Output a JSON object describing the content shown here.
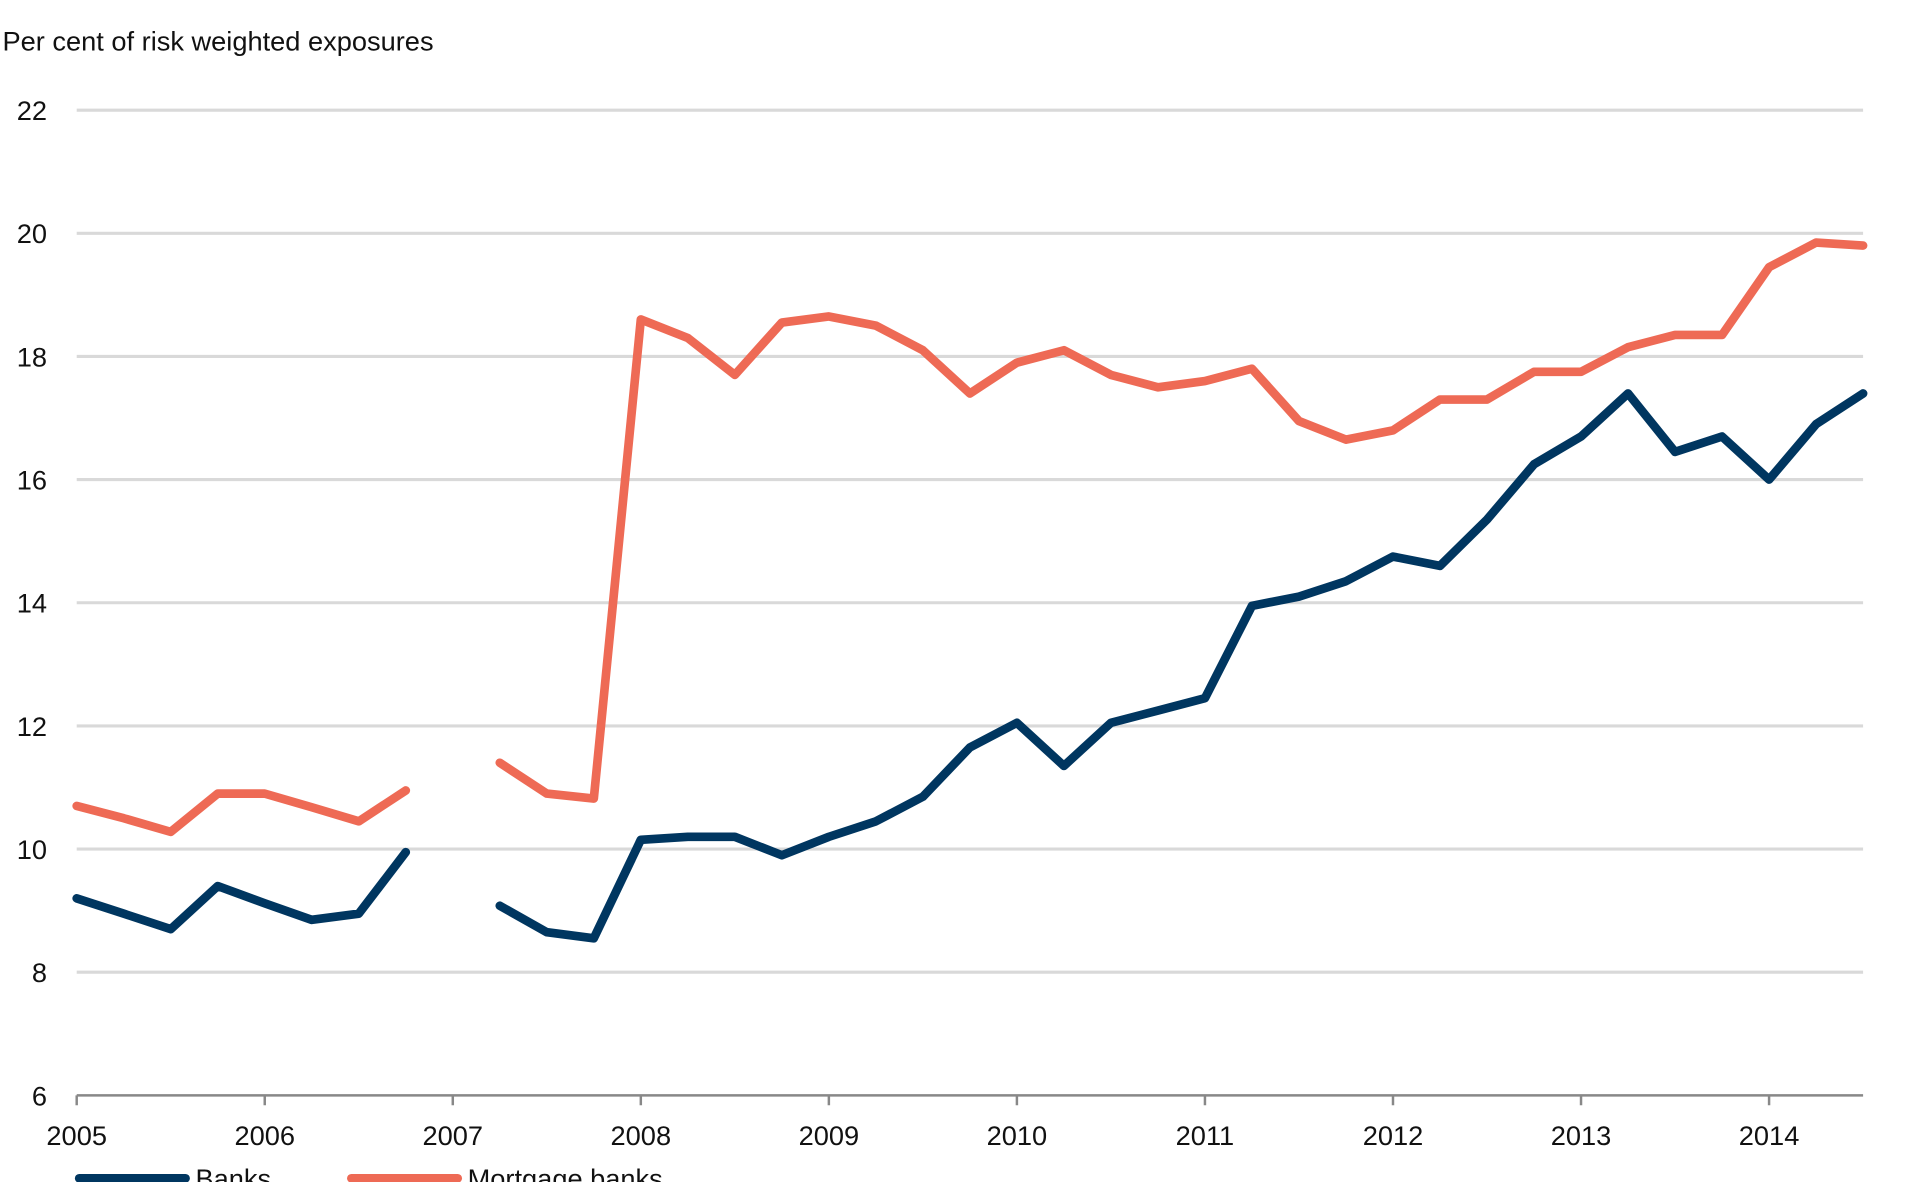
{
  "chart_data": {
    "type": "line",
    "title": "",
    "ylabel": "Per cent of risk weighted exposures",
    "xlabel": "",
    "ylim": [
      6,
      22
    ],
    "xlim": [
      2005,
      2014.5
    ],
    "yticks": [
      "6",
      "8",
      "10",
      "12",
      "14",
      "16",
      "18",
      "20",
      "22"
    ],
    "xticks": [
      "2005",
      "2006",
      "2007",
      "2008",
      "2009",
      "2010",
      "2011",
      "2012",
      "2013",
      "2014"
    ],
    "grid": true,
    "legend_position": "bottom-left",
    "x": [
      2005,
      2005.25,
      2005.5,
      2005.75,
      2006,
      2006.25,
      2006.5,
      2006.75,
      2007,
      2007.25,
      2007.5,
      2007.75,
      2008,
      2008.25,
      2008.5,
      2008.75,
      2009,
      2009.25,
      2009.5,
      2009.75,
      2010,
      2010.25,
      2010.5,
      2010.75,
      2011,
      2011.25,
      2011.5,
      2011.75,
      2012,
      2012.25,
      2012.5,
      2012.75,
      2013,
      2013.25,
      2013.5,
      2013.75,
      2014,
      2014.25,
      2014.5
    ],
    "series": [
      {
        "name": "Banks",
        "color": "#003660",
        "values": [
          9.2,
          8.95,
          8.7,
          9.4,
          9.12,
          8.85,
          8.95,
          9.95,
          null,
          9.08,
          8.65,
          8.55,
          10.15,
          10.2,
          10.2,
          9.9,
          10.2,
          10.45,
          10.85,
          11.65,
          12.05,
          11.35,
          12.05,
          12.25,
          12.45,
          13.95,
          14.1,
          14.35,
          14.75,
          14.6,
          15.35,
          16.25,
          16.7,
          17.4,
          16.45,
          16.7,
          16.0,
          16.9,
          17.4
        ]
      },
      {
        "name": "Mortgage banks",
        "color": "#EE6A55",
        "values": [
          10.7,
          10.5,
          10.28,
          10.9,
          10.9,
          10.68,
          10.45,
          10.95,
          null,
          11.4,
          10.9,
          10.82,
          18.6,
          18.3,
          17.7,
          18.55,
          18.65,
          18.5,
          18.1,
          17.4,
          17.9,
          18.1,
          17.7,
          17.5,
          17.6,
          17.8,
          16.95,
          16.65,
          16.8,
          17.3,
          17.3,
          17.75,
          17.75,
          18.15,
          18.35,
          18.35,
          19.45,
          19.85,
          19.8
        ]
      }
    ]
  }
}
